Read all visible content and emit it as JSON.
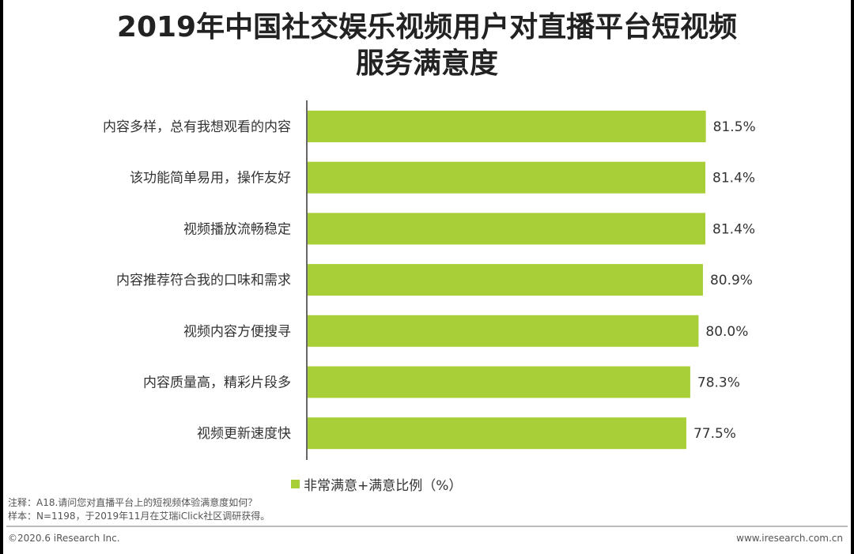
{
  "title_line1": "2019年中国社交娱乐视频用户对直播平台短视频",
  "title_line2": "服务满意度",
  "colors": {
    "bar": "#a9cf38",
    "axis": "#333333",
    "text": "#333333"
  },
  "legend_label": "非常满意+满意比例（%）",
  "notes": {
    "line1": "注释：A18.请问您对直播平台上的短视频体验满意度如何？",
    "line2": "样本：N=1198，于2019年11月在艾瑞iClick社区调研获得。"
  },
  "footer": {
    "copyright": "©2020.6 iResearch Inc.",
    "site": "www.iresearch.com.cn"
  },
  "chart_data": {
    "type": "bar",
    "orientation": "horizontal",
    "categories": [
      "内容多样，总有我想观看的内容",
      "该功能简单易用，操作友好",
      "视频播放流畅稳定",
      "内容推荐符合我的口味和需求",
      "视频内容方便搜寻",
      "内容质量高，精彩片段多",
      "视频更新速度快"
    ],
    "values": [
      81.5,
      81.4,
      81.4,
      80.9,
      80.0,
      78.3,
      77.5
    ],
    "value_labels": [
      "81.5%",
      "81.4%",
      "81.4%",
      "80.9%",
      "80.0%",
      "78.3%",
      "77.5%"
    ],
    "xlim": [
      0,
      100
    ],
    "legend": "bottom",
    "grid": false
  }
}
